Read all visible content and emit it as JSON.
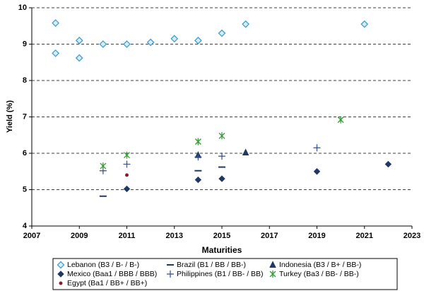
{
  "chart_data": {
    "type": "scatter",
    "xlabel": "Maturities",
    "ylabel": "Yield (%)",
    "xlim": [
      2007,
      2023
    ],
    "xticks": [
      2007,
      2009,
      2011,
      2013,
      2015,
      2017,
      2019,
      2021,
      2023
    ],
    "ylim": [
      4,
      10
    ],
    "yticks": [
      4,
      5,
      6,
      7,
      8,
      9,
      10
    ],
    "grid": true,
    "series": [
      {
        "name": "Lebanon (B3 / B- / B-)",
        "color": "#3399cc",
        "marker": "open-diamond",
        "x": [
          2008,
          2008,
          2009,
          2009,
          2010,
          2011,
          2012,
          2013,
          2014,
          2015,
          2016,
          2021
        ],
        "values": [
          9.58,
          8.75,
          9.1,
          8.62,
          9.0,
          9.0,
          9.05,
          9.15,
          9.1,
          9.3,
          9.55,
          9.55
        ]
      },
      {
        "name": "Brazil (B1 / BB / BB-)",
        "color": "#1f3864",
        "marker": "dash",
        "x": [
          2010,
          2014,
          2015
        ],
        "values": [
          4.82,
          5.52,
          5.62
        ]
      },
      {
        "name": "Indonesia (B3 / B+ / BB-)",
        "color": "#1f3864",
        "marker": "triangle",
        "x": [
          2014,
          2016
        ],
        "values": [
          5.95,
          6.02
        ]
      },
      {
        "name": "Mexico (Baa1 / BBB / BBB)",
        "color": "#1f3864",
        "marker": "diamond",
        "x": [
          2011,
          2014,
          2015,
          2019,
          2022
        ],
        "values": [
          5.02,
          5.27,
          5.3,
          5.5,
          5.7
        ]
      },
      {
        "name": "Philippines (B1 / BB- / BB)",
        "color": "#2f4f8f",
        "marker": "plus",
        "x": [
          2010,
          2011,
          2014,
          2015,
          2019
        ],
        "values": [
          5.52,
          5.7,
          5.9,
          5.92,
          6.15
        ]
      },
      {
        "name": "Turkey (Ba3 / BB- / BB-)",
        "color": "#339933",
        "marker": "star",
        "x": [
          2010,
          2011,
          2014,
          2015,
          2020
        ],
        "values": [
          5.65,
          5.95,
          6.32,
          6.48,
          6.92
        ]
      },
      {
        "name": "Egypt (Ba1 / BB+ / BB+)",
        "color": "#8b1a2b",
        "marker": "dot",
        "x": [
          2011
        ],
        "values": [
          5.4
        ]
      }
    ]
  }
}
